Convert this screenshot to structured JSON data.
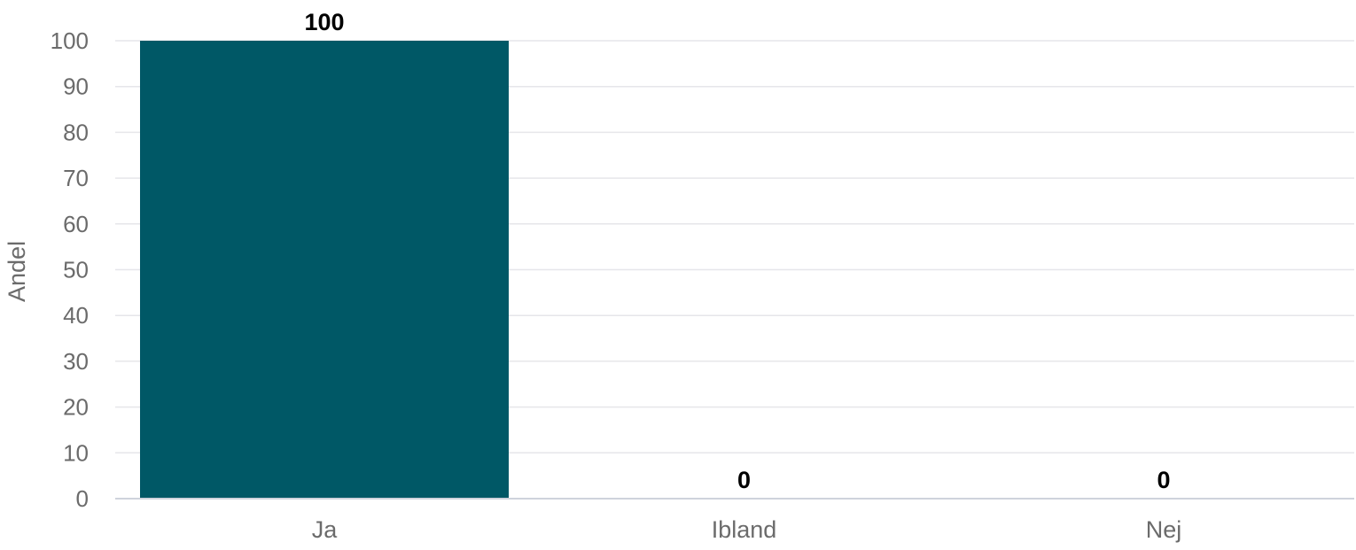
{
  "chart_data": {
    "type": "bar",
    "categories": [
      "Ja",
      "Ibland",
      "Nej"
    ],
    "values": [
      100,
      0,
      0
    ],
    "data_labels": [
      "100",
      "0",
      "0"
    ],
    "title": "",
    "xlabel": "",
    "ylabel": "Andel",
    "ylim": [
      0,
      100
    ],
    "yticks": [
      0,
      10,
      20,
      30,
      40,
      50,
      60,
      70,
      80,
      90,
      100
    ],
    "grid": true,
    "legend": "none",
    "colors": {
      "bar": "#005866",
      "grid": "#e6e6ea",
      "axis": "#cfd3dc",
      "tick_text": "#6b6b6b",
      "data_label_text": "#000000"
    }
  }
}
